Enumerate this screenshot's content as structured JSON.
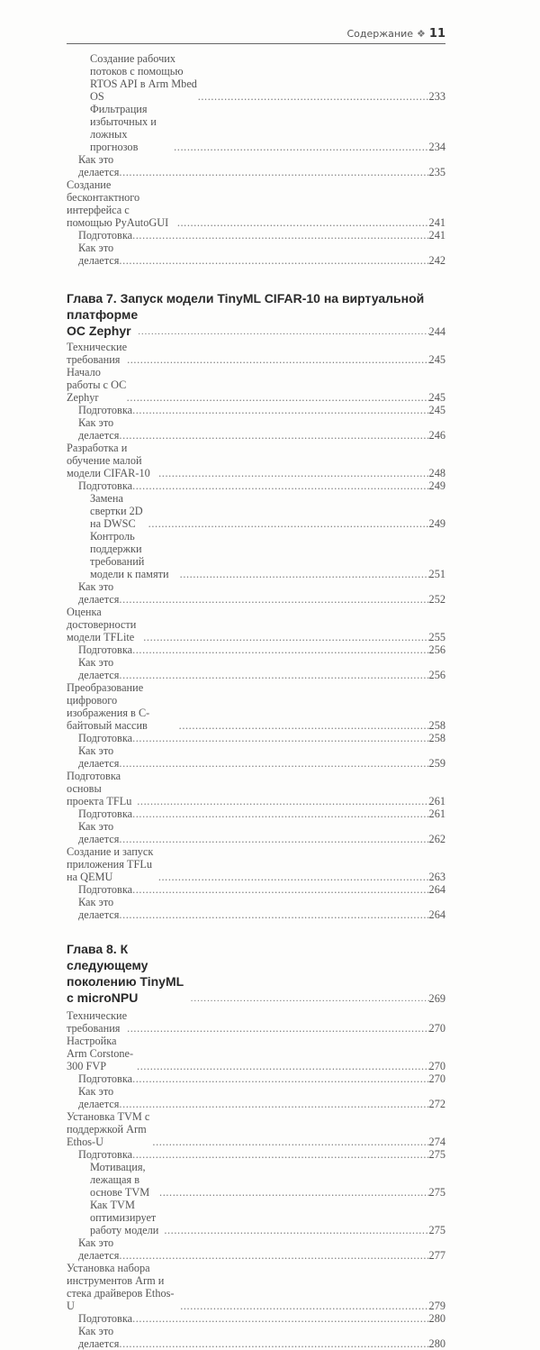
{
  "header": {
    "section": "Содержание",
    "ornament": "❖",
    "page_number": "11"
  },
  "intro_entries": [
    {
      "level": 2,
      "title": "Создание рабочих потоков с помощью RTOS API в Arm Mbed OS",
      "page": "233"
    },
    {
      "level": 2,
      "title": "Фильтрация избыточных и ложных прогнозов",
      "page": "234"
    },
    {
      "level": 1,
      "title": "Как это делается",
      "page": "235"
    },
    {
      "level": 0,
      "title": "Создание бесконтактного интерфейса с помощью PyAutoGUI",
      "page": "241"
    },
    {
      "level": 1,
      "title": "Подготовка",
      "page": "241"
    },
    {
      "level": 1,
      "title": "Как это делается",
      "page": "242"
    }
  ],
  "chapters": [
    {
      "title_line1": "Глава 7. Запуск модели TinyML CIFAR-10 на виртуальной",
      "title_line2": "платформе ОС Zephyr",
      "page": "244",
      "entries": [
        {
          "level": 0,
          "title": "Технические требования",
          "page": "245"
        },
        {
          "level": 0,
          "title": "Начало работы с ОС Zephyr",
          "page": "245"
        },
        {
          "level": 1,
          "title": "Подготовка",
          "page": "245"
        },
        {
          "level": 1,
          "title": "Как это делается",
          "page": "246"
        },
        {
          "level": 0,
          "title": "Разработка и обучение малой модели CIFAR-10",
          "page": "248"
        },
        {
          "level": 1,
          "title": "Подготовка",
          "page": "249"
        },
        {
          "level": 2,
          "title": "Замена свертки 2D на DWSC",
          "page": "249"
        },
        {
          "level": 2,
          "title": "Контроль поддержки требований модели к памяти",
          "page": "251"
        },
        {
          "level": 1,
          "title": "Как это делается",
          "page": "252"
        },
        {
          "level": 0,
          "title": "Оценка достоверности модели TFLite",
          "page": "255"
        },
        {
          "level": 1,
          "title": "Подготовка",
          "page": "256"
        },
        {
          "level": 1,
          "title": "Как это делается",
          "page": "256"
        },
        {
          "level": 0,
          "title": "Преобразование цифрового изображения в С-байтовый массив",
          "page": "258"
        },
        {
          "level": 1,
          "title": "Подготовка",
          "page": "258"
        },
        {
          "level": 1,
          "title": "Как это делается",
          "page": "259"
        },
        {
          "level": 0,
          "title": "Подготовка основы проекта TFLu",
          "page": "261"
        },
        {
          "level": 1,
          "title": "Подготовка",
          "page": "261"
        },
        {
          "level": 1,
          "title": "Как это делается",
          "page": "262"
        },
        {
          "level": 0,
          "title": "Создание и запуск приложения TFLu на QEMU",
          "page": "263"
        },
        {
          "level": 1,
          "title": "Подготовка",
          "page": "264"
        },
        {
          "level": 1,
          "title": "Как это делается",
          "page": "264"
        }
      ]
    },
    {
      "title_line1": "",
      "title_line2": "Глава 8. К следующему поколению TinyML с microNPU",
      "page": "269",
      "entries": [
        {
          "level": 0,
          "title": "Технические требования",
          "page": "270"
        },
        {
          "level": 0,
          "title": "Настройка Arm Corstone-300 FVP",
          "page": "270"
        },
        {
          "level": 1,
          "title": "Подготовка",
          "page": "270"
        },
        {
          "level": 1,
          "title": "Как это делается",
          "page": "272"
        },
        {
          "level": 0,
          "title": "Установка TVM с поддержкой Arm Ethos-U",
          "page": "274"
        },
        {
          "level": 1,
          "title": "Подготовка",
          "page": "275"
        },
        {
          "level": 2,
          "title": "Мотивация, лежащая в основе TVM",
          "page": "275"
        },
        {
          "level": 2,
          "title": "Как TVM оптимизирует работу модели",
          "page": "275"
        },
        {
          "level": 1,
          "title": "Как это делается",
          "page": "277"
        },
        {
          "level": 0,
          "title": "Установка набора инструментов Arm и стека драйверов Ethos-U",
          "page": "279"
        },
        {
          "level": 1,
          "title": "Подготовка",
          "page": "280"
        },
        {
          "level": 1,
          "title": "Как это делается",
          "page": "280"
        }
      ]
    }
  ]
}
